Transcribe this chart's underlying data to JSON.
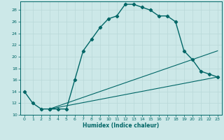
{
  "xlabel": "Humidex (Indice chaleur)",
  "bg_color": "#cce8e8",
  "grid_color": "#b8d8d8",
  "line_color": "#006666",
  "xlim": [
    -0.5,
    23.5
  ],
  "ylim": [
    10,
    29.5
  ],
  "xticks": [
    0,
    1,
    2,
    3,
    4,
    5,
    6,
    7,
    8,
    9,
    10,
    11,
    12,
    13,
    14,
    15,
    16,
    17,
    18,
    19,
    20,
    21,
    22,
    23
  ],
  "yticks": [
    10,
    12,
    14,
    16,
    18,
    20,
    22,
    24,
    26,
    28
  ],
  "main_line": {
    "x": [
      0,
      1,
      2,
      3,
      3,
      4,
      5,
      6,
      7,
      8,
      9,
      10,
      11,
      12,
      13,
      14,
      15,
      16,
      17,
      18,
      19,
      20,
      21,
      22,
      23
    ],
    "y": [
      14,
      12,
      11,
      11,
      11,
      11,
      11,
      16,
      21,
      23,
      25,
      26.5,
      27,
      29,
      29,
      28.5,
      28,
      27,
      27,
      26,
      21,
      19.5,
      17.5,
      17,
      16.5
    ]
  },
  "line2": {
    "x": [
      3,
      23
    ],
    "y": [
      11,
      21
    ]
  },
  "line3": {
    "x": [
      3,
      23
    ],
    "y": [
      11,
      16.5
    ]
  }
}
